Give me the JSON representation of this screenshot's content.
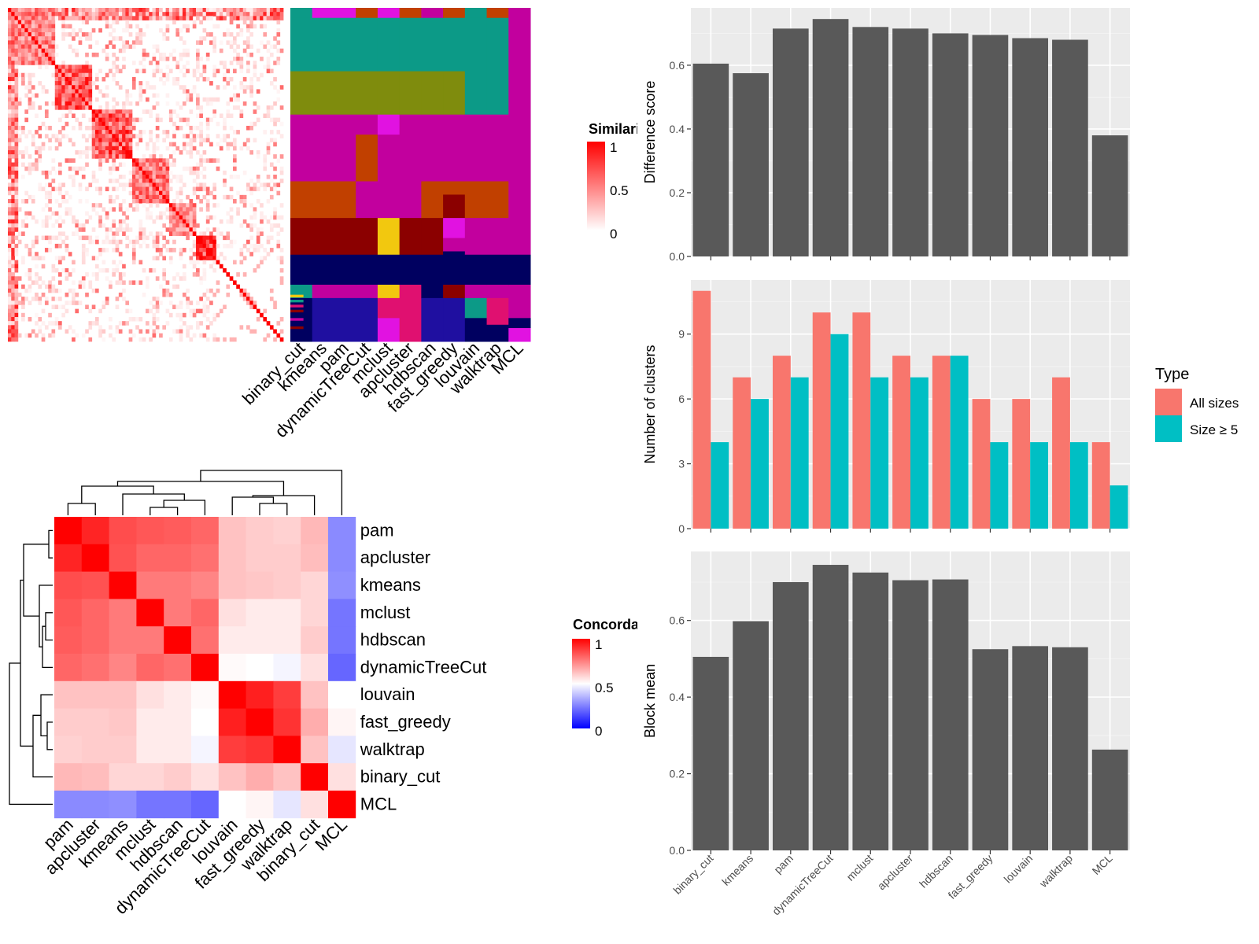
{
  "colors": {
    "panel_bg": "#ebebeb",
    "grid": "#ffffff",
    "bar_gray": "#595959",
    "all_sizes": "#f8766d",
    "size_ge5": "#00bfc4",
    "heat_high": "#ff0000",
    "heat_low": "#0000ff",
    "heat_mid": "#ffffff",
    "partition_palette": [
      "#0c9a87",
      "#7f8c0d",
      "#c2009e",
      "#c14000",
      "#8b0000",
      "#f2c80f",
      "#000060",
      "#e112e1",
      "#1f0fa0",
      "#e01070"
    ]
  },
  "methods_sim_order": [
    "binary_cut",
    "kmeans",
    "pam",
    "dynamicTreeCut",
    "mclust",
    "apcluster",
    "hdbscan",
    "fast_greedy",
    "louvain",
    "walktrap",
    "MCL"
  ],
  "methods_bar_order": [
    "binary_cut",
    "kmeans",
    "pam",
    "dynamicTreeCut",
    "mclust",
    "apcluster",
    "hdbscan",
    "fast_greedy",
    "louvain",
    "walktrap",
    "MCL"
  ],
  "methods_conc_order": [
    "pam",
    "apcluster",
    "kmeans",
    "mclust",
    "hdbscan",
    "dynamicTreeCut",
    "louvain",
    "fast_greedy",
    "walktrap",
    "binary_cut",
    "MCL"
  ],
  "similarity_legend": {
    "title": "Similarity",
    "ticks": [
      "1",
      "0.5",
      "0"
    ]
  },
  "concordance_legend": {
    "title": "Concordance",
    "ticks": [
      "1",
      "0.5",
      "0"
    ]
  },
  "chart_data": [
    {
      "type": "heatmap",
      "id": "similarity-heatmap",
      "title": "",
      "note": "term-by-term similarity matrix, ordered by binary_cut clusters",
      "blocks": [
        {
          "start": 0,
          "size": 14,
          "within": 0.55
        },
        {
          "start": 14,
          "size": 11,
          "within": 0.7
        },
        {
          "start": 25,
          "size": 12,
          "within": 0.7
        },
        {
          "start": 37,
          "size": 11,
          "within": 0.6
        },
        {
          "start": 48,
          "size": 8,
          "within": 0.5
        },
        {
          "start": 56,
          "size": 6,
          "within": 0.85
        },
        {
          "start": 62,
          "size": 20,
          "within": 0.05
        }
      ],
      "n_terms": 82,
      "value_range": [
        0,
        1
      ]
    },
    {
      "type": "heatmap",
      "id": "partition-heatmap",
      "title": "",
      "x": [
        "binary_cut",
        "kmeans",
        "pam",
        "dynamicTreeCut",
        "mclust",
        "apcluster",
        "hdbscan",
        "fast_greedy",
        "louvain",
        "walktrap",
        "MCL"
      ]
    },
    {
      "type": "bar",
      "id": "difference-score",
      "categories": [
        "binary_cut",
        "kmeans",
        "pam",
        "dynamicTreeCut",
        "mclust",
        "apcluster",
        "hdbscan",
        "fast_greedy",
        "louvain",
        "walktrap",
        "MCL"
      ],
      "values": [
        0.605,
        0.575,
        0.715,
        0.745,
        0.72,
        0.715,
        0.7,
        0.695,
        0.685,
        0.68,
        0.38
      ],
      "xlabel": "",
      "ylabel": "Difference score",
      "ylim": [
        0,
        0.78
      ],
      "yticks": [
        0,
        0.2,
        0.4,
        0.6
      ],
      "ytick_labels": [
        "0.0",
        "0.2",
        "0.4",
        "0.6"
      ],
      "grid": true
    },
    {
      "type": "bar",
      "id": "number-of-clusters",
      "categories": [
        "binary_cut",
        "kmeans",
        "pam",
        "dynamicTreeCut",
        "mclust",
        "apcluster",
        "hdbscan",
        "fast_greedy",
        "louvain",
        "walktrap",
        "MCL"
      ],
      "series": [
        {
          "name": "All sizes",
          "values": [
            11,
            7,
            8,
            10,
            10,
            8,
            8,
            6,
            6,
            7,
            4
          ]
        },
        {
          "name": "Size ≥ 5",
          "values": [
            4,
            6,
            7,
            9,
            7,
            7,
            8,
            4,
            4,
            4,
            2
          ]
        }
      ],
      "xlabel": "",
      "ylabel": "Number of clusters",
      "ylim": [
        0,
        11.5
      ],
      "yticks": [
        0,
        3,
        6,
        9
      ],
      "ytick_labels": [
        "0",
        "3",
        "6",
        "9"
      ],
      "legend": {
        "title": "Type",
        "placement": "right"
      },
      "grid": true
    },
    {
      "type": "bar",
      "id": "block-mean",
      "categories": [
        "binary_cut",
        "kmeans",
        "pam",
        "dynamicTreeCut",
        "mclust",
        "apcluster",
        "hdbscan",
        "fast_greedy",
        "louvain",
        "walktrap",
        "MCL"
      ],
      "values": [
        0.505,
        0.598,
        0.7,
        0.745,
        0.725,
        0.705,
        0.707,
        0.525,
        0.533,
        0.53,
        0.263
      ],
      "xlabel": "",
      "ylabel": "Block mean",
      "ylim": [
        0,
        0.78
      ],
      "yticks": [
        0,
        0.2,
        0.4,
        0.6
      ],
      "ytick_labels": [
        "0.0",
        "0.2",
        "0.4",
        "0.6"
      ],
      "grid": true
    },
    {
      "type": "heatmap",
      "id": "concordance-heatmap",
      "rows": [
        "pam",
        "apcluster",
        "kmeans",
        "mclust",
        "hdbscan",
        "dynamicTreeCut",
        "louvain",
        "fast_greedy",
        "walktrap",
        "binary_cut",
        "MCL"
      ],
      "cols": [
        "pam",
        "apcluster",
        "kmeans",
        "mclust",
        "hdbscan",
        "dynamicTreeCut",
        "louvain",
        "fast_greedy",
        "walktrap",
        "binary_cut",
        "MCL"
      ],
      "values": [
        [
          1.0,
          0.93,
          0.85,
          0.83,
          0.82,
          0.8,
          0.62,
          0.6,
          0.59,
          0.64,
          0.27
        ],
        [
          0.93,
          1.0,
          0.84,
          0.8,
          0.8,
          0.78,
          0.62,
          0.6,
          0.6,
          0.63,
          0.27
        ],
        [
          0.85,
          0.84,
          1.0,
          0.76,
          0.76,
          0.74,
          0.62,
          0.61,
          0.6,
          0.58,
          0.28
        ],
        [
          0.83,
          0.8,
          0.76,
          1.0,
          0.76,
          0.8,
          0.56,
          0.54,
          0.54,
          0.58,
          0.23
        ],
        [
          0.82,
          0.8,
          0.76,
          0.76,
          1.0,
          0.78,
          0.54,
          0.54,
          0.54,
          0.6,
          0.23
        ],
        [
          0.8,
          0.78,
          0.74,
          0.8,
          0.78,
          1.0,
          0.51,
          0.5,
          0.48,
          0.56,
          0.2
        ],
        [
          0.62,
          0.62,
          0.62,
          0.56,
          0.54,
          0.51,
          1.0,
          0.94,
          0.88,
          0.62,
          0.5
        ],
        [
          0.6,
          0.6,
          0.61,
          0.54,
          0.54,
          0.5,
          0.94,
          1.0,
          0.9,
          0.66,
          0.52
        ],
        [
          0.59,
          0.6,
          0.6,
          0.54,
          0.54,
          0.48,
          0.88,
          0.9,
          1.0,
          0.62,
          0.45
        ],
        [
          0.64,
          0.63,
          0.58,
          0.58,
          0.6,
          0.56,
          0.62,
          0.66,
          0.62,
          1.0,
          0.56
        ],
        [
          0.27,
          0.27,
          0.28,
          0.23,
          0.23,
          0.2,
          0.5,
          0.52,
          0.45,
          0.56,
          1.0
        ]
      ],
      "value_range": [
        0,
        1
      ]
    }
  ]
}
